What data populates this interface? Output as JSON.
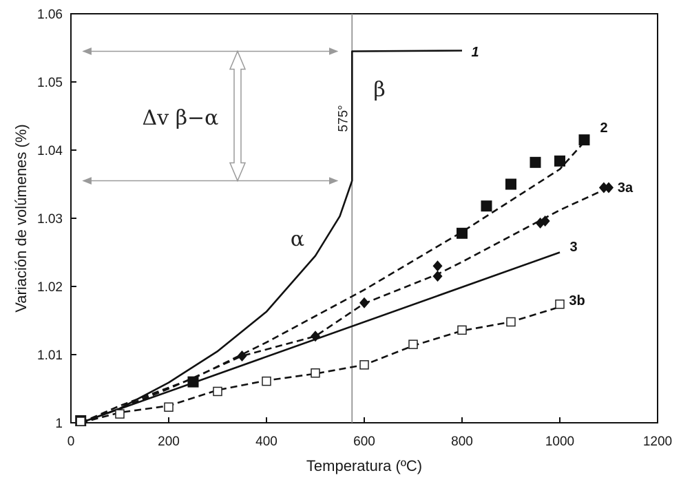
{
  "chart_data": {
    "type": "scatter",
    "xlabel": "Temperatura (ºC)",
    "ylabel": "Variación de volúmenes (%)",
    "xlim": [
      0,
      1200
    ],
    "ylim": [
      1.0,
      1.06
    ],
    "x_ticks": [
      0,
      200,
      400,
      600,
      800,
      1000,
      1200
    ],
    "y_ticks": [
      1.0,
      1.01,
      1.02,
      1.03,
      1.04,
      1.05,
      1.06
    ],
    "x_tick_labels": [
      "0",
      "200",
      "400",
      "600",
      "800",
      "1000",
      "1200"
    ],
    "y_tick_labels": [
      "1",
      "1.01",
      "1.02",
      "1.03",
      "1.04",
      "1.05",
      "1.06"
    ],
    "grid": false,
    "transition": {
      "x": 575,
      "label": "575°"
    },
    "phase_labels": {
      "alpha": "α",
      "beta": "β"
    },
    "delta_annotation": {
      "label": "Δv β−α",
      "y_low": 1.0355,
      "y_high": 1.0545,
      "x_start": 25,
      "x_end": 545
    },
    "series": [
      {
        "name": "1",
        "style": "solid",
        "line": [
          [
            20,
            1.0
          ],
          [
            100,
            1.0021
          ],
          [
            200,
            1.0059
          ],
          [
            300,
            1.0105
          ],
          [
            400,
            1.0163
          ],
          [
            500,
            1.0245
          ],
          [
            550,
            1.0303
          ],
          [
            575,
            1.0355
          ],
          [
            575,
            1.0545
          ],
          [
            800,
            1.0546
          ]
        ],
        "points": [],
        "marker": "none"
      },
      {
        "name": "2",
        "style": "dashed",
        "line": [
          [
            20,
            1.0
          ],
          [
            100,
            1.0025
          ],
          [
            250,
            1.0065
          ],
          [
            400,
            1.0118
          ],
          [
            600,
            1.0195
          ],
          [
            800,
            1.028
          ],
          [
            1000,
            1.0372
          ],
          [
            1050,
            1.0412
          ]
        ],
        "points": [
          [
            20,
            1.0003
          ],
          [
            250,
            1.006
          ],
          [
            800,
            1.0278
          ],
          [
            850,
            1.0318
          ],
          [
            900,
            1.035
          ],
          [
            950,
            1.0382
          ],
          [
            1000,
            1.0384
          ],
          [
            1050,
            1.0415
          ]
        ],
        "marker": "filled-square"
      },
      {
        "name": "3a",
        "style": "dashed",
        "line": [
          [
            20,
            1.0
          ],
          [
            100,
            1.0021
          ],
          [
            200,
            1.005
          ],
          [
            350,
            1.0098
          ],
          [
            500,
            1.0127
          ],
          [
            600,
            1.0175
          ],
          [
            750,
            1.0218
          ],
          [
            800,
            1.0236
          ],
          [
            950,
            1.0293
          ],
          [
            1000,
            1.0312
          ],
          [
            1100,
            1.0345
          ]
        ],
        "points": [
          [
            20,
            1.0003
          ],
          [
            350,
            1.0098
          ],
          [
            500,
            1.0127
          ],
          [
            600,
            1.0176
          ],
          [
            750,
            1.023
          ],
          [
            750,
            1.0215
          ],
          [
            960,
            1.0293
          ],
          [
            970,
            1.0296
          ],
          [
            1090,
            1.0345
          ],
          [
            1100,
            1.0345
          ]
        ],
        "marker": "filled-diamond"
      },
      {
        "name": "3",
        "style": "solid",
        "line": [
          [
            20,
            1.0
          ],
          [
            1000,
            1.025
          ]
        ],
        "points": [],
        "marker": "none"
      },
      {
        "name": "3b",
        "style": "dashed",
        "line": [
          [
            20,
            1.0
          ],
          [
            100,
            1.0015
          ],
          [
            200,
            1.0025
          ],
          [
            300,
            1.0048
          ],
          [
            400,
            1.0062
          ],
          [
            500,
            1.0072
          ],
          [
            600,
            1.0085
          ],
          [
            700,
            1.0113
          ],
          [
            800,
            1.0135
          ],
          [
            900,
            1.0148
          ],
          [
            1000,
            1.017
          ]
        ],
        "points": [
          [
            20,
            1.0002
          ],
          [
            100,
            1.0013
          ],
          [
            200,
            1.0023
          ],
          [
            300,
            1.0046
          ],
          [
            400,
            1.0061
          ],
          [
            500,
            1.0073
          ],
          [
            600,
            1.0085
          ],
          [
            700,
            1.0115
          ],
          [
            800,
            1.0136
          ],
          [
            900,
            1.0148
          ],
          [
            1000,
            1.0174
          ]
        ],
        "marker": "open-square"
      }
    ]
  }
}
